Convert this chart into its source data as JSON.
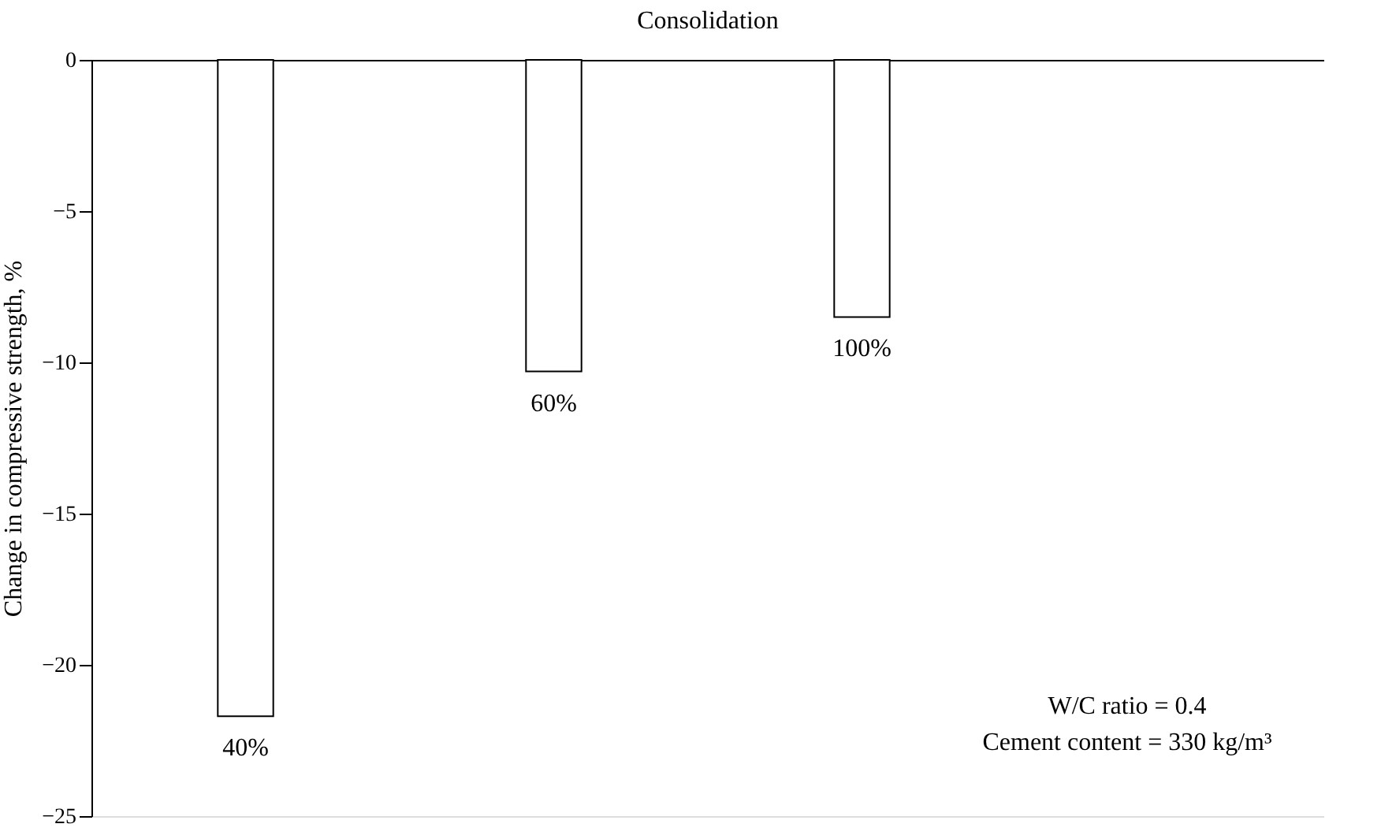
{
  "chart_data": {
    "type": "bar",
    "title": "Consolidation",
    "ylabel": "Change in compressive strength, %",
    "categories": [
      "40%",
      "60%",
      "100%",
      null
    ],
    "values": [
      -21.7,
      -10.3,
      -8.5,
      null
    ],
    "color": "#ffffff",
    "ylim": [
      -25,
      0
    ],
    "yticks": [
      -25,
      -20,
      -15,
      -10,
      -5,
      0
    ],
    "grid": false,
    "annotations": [
      "W/C ratio = 0.4",
      "Cement content = 330 kg/m³"
    ]
  }
}
